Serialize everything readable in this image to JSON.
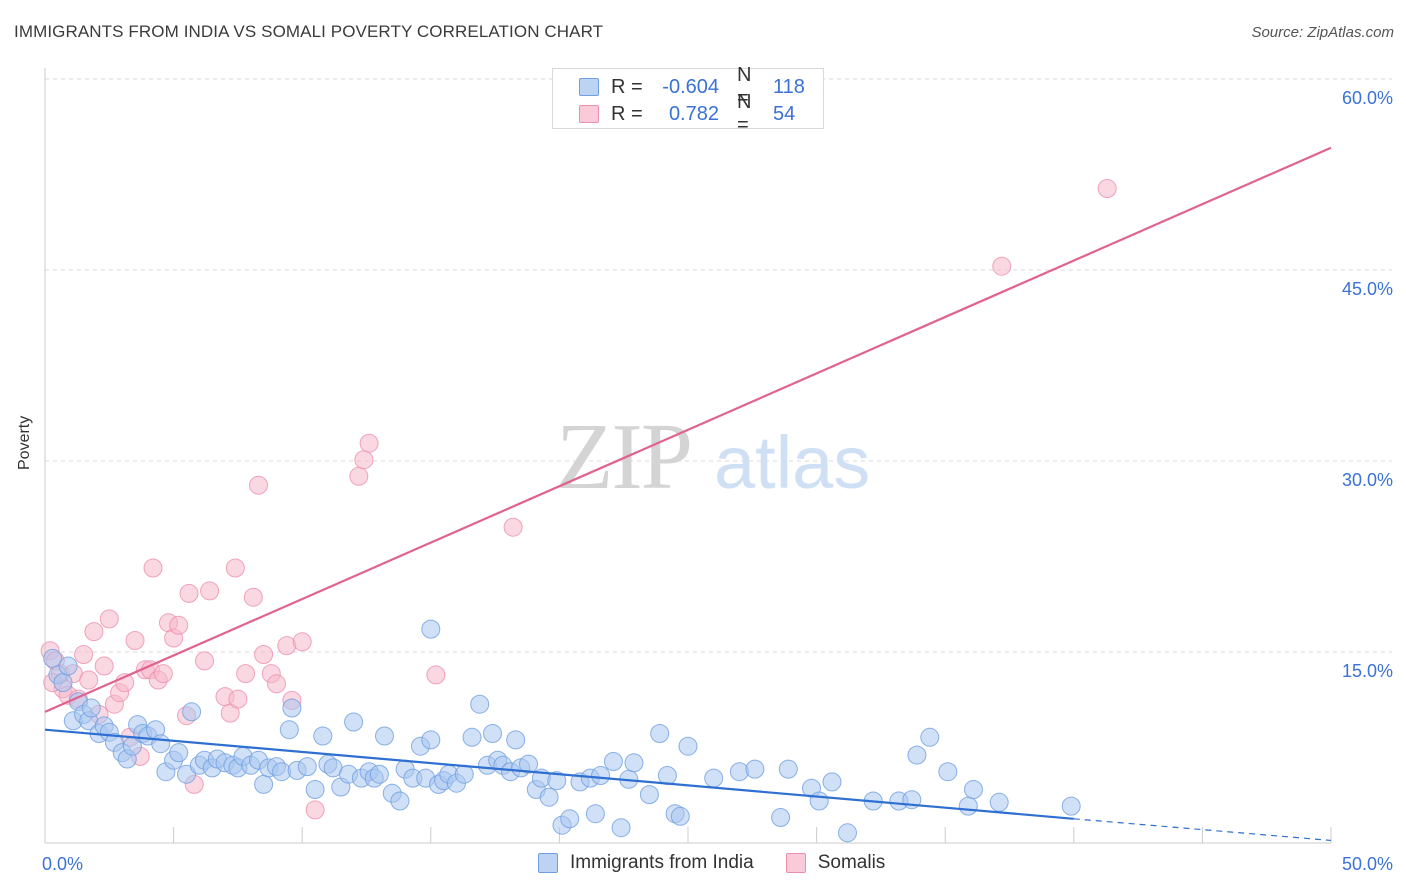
{
  "title": "IMMIGRANTS FROM INDIA VS SOMALI POVERTY CORRELATION CHART",
  "source": "Source: ZipAtlas.com",
  "watermark": {
    "zip": "ZIP",
    "atlas": "atlas"
  },
  "colors": {
    "blue_fill": "#a9c6f0",
    "blue_stroke": "#6f9fe0",
    "blue_line": "#2e6fd1",
    "pink_fill": "#f6b8cb",
    "pink_stroke": "#ec8fae",
    "pink_line": "#e0628f",
    "axis_text": "#3a72d6",
    "grid": "#d8d8d8"
  },
  "legend_top": {
    "rows": [
      {
        "r_label": "R =",
        "r_value": "-0.604",
        "n_label": "N =",
        "n_value": "118"
      },
      {
        "r_label": "R =",
        "r_value": "0.782",
        "n_label": "N =",
        "n_value": "54"
      }
    ]
  },
  "legend_bottom": [
    {
      "label": "Immigrants from India"
    },
    {
      "label": "Somalis"
    }
  ],
  "chart_data": {
    "type": "scatter",
    "title": "IMMIGRANTS FROM INDIA VS SOMALI POVERTY CORRELATION CHART",
    "xlabel": "",
    "ylabel": "Poverty",
    "xlim": [
      0,
      50
    ],
    "ylim": [
      0,
      60
    ],
    "x_tick_labels": [
      "0.0%",
      "50.0%"
    ],
    "y_ticks": [
      15,
      30,
      45,
      60
    ],
    "y_tick_labels": [
      "15.0%",
      "30.0%",
      "45.0%",
      "60.0%"
    ],
    "grid": true,
    "legend_position": "top-center",
    "series": [
      {
        "name": "Immigrants from India",
        "r": -0.604,
        "n": 118,
        "trend": {
          "x0": 0,
          "y0": 8.9,
          "x1": 40,
          "y1": 1.9,
          "dashed_to_x": 50,
          "dashed_to_y": 0.2
        },
        "points": [
          [
            0.3,
            14.5
          ],
          [
            0.5,
            13.2
          ],
          [
            0.7,
            12.6
          ],
          [
            0.9,
            13.9
          ],
          [
            1.1,
            9.6
          ],
          [
            1.3,
            11.1
          ],
          [
            1.5,
            10.1
          ],
          [
            1.7,
            9.6
          ],
          [
            1.8,
            10.6
          ],
          [
            2.1,
            8.6
          ],
          [
            2.3,
            9.2
          ],
          [
            2.5,
            8.7
          ],
          [
            2.7,
            7.9
          ],
          [
            3.0,
            7.1
          ],
          [
            3.2,
            6.6
          ],
          [
            3.4,
            7.6
          ],
          [
            3.6,
            9.3
          ],
          [
            3.8,
            8.6
          ],
          [
            4.0,
            8.4
          ],
          [
            4.3,
            8.9
          ],
          [
            4.5,
            7.8
          ],
          [
            4.7,
            5.6
          ],
          [
            5.0,
            6.5
          ],
          [
            5.2,
            7.1
          ],
          [
            5.5,
            5.4
          ],
          [
            5.7,
            10.3
          ],
          [
            6.0,
            6.1
          ],
          [
            6.2,
            6.5
          ],
          [
            6.5,
            5.9
          ],
          [
            6.7,
            6.6
          ],
          [
            7.0,
            6.3
          ],
          [
            7.3,
            6.1
          ],
          [
            7.5,
            5.9
          ],
          [
            7.7,
            6.8
          ],
          [
            8.0,
            6.1
          ],
          [
            8.3,
            6.5
          ],
          [
            8.5,
            4.6
          ],
          [
            8.7,
            5.9
          ],
          [
            9.0,
            6.0
          ],
          [
            9.2,
            5.6
          ],
          [
            9.5,
            8.9
          ],
          [
            9.6,
            10.6
          ],
          [
            9.8,
            5.7
          ],
          [
            10.2,
            6.0
          ],
          [
            10.5,
            4.2
          ],
          [
            10.8,
            8.4
          ],
          [
            11.0,
            6.2
          ],
          [
            11.2,
            5.9
          ],
          [
            11.5,
            4.4
          ],
          [
            11.8,
            5.4
          ],
          [
            12.0,
            9.5
          ],
          [
            12.3,
            5.1
          ],
          [
            12.6,
            5.6
          ],
          [
            12.8,
            5.1
          ],
          [
            13.0,
            5.4
          ],
          [
            13.2,
            8.4
          ],
          [
            13.5,
            3.9
          ],
          [
            13.8,
            3.3
          ],
          [
            14.0,
            5.8
          ],
          [
            14.3,
            5.1
          ],
          [
            14.6,
            7.6
          ],
          [
            14.8,
            5.1
          ],
          [
            15.0,
            8.1
          ],
          [
            15.3,
            4.6
          ],
          [
            15.5,
            4.9
          ],
          [
            15.7,
            5.4
          ],
          [
            16.0,
            4.7
          ],
          [
            16.3,
            5.4
          ],
          [
            16.6,
            8.3
          ],
          [
            16.9,
            10.9
          ],
          [
            17.2,
            6.1
          ],
          [
            17.4,
            8.6
          ],
          [
            17.6,
            6.5
          ],
          [
            17.8,
            6.1
          ],
          [
            18.1,
            5.6
          ],
          [
            18.3,
            8.1
          ],
          [
            18.5,
            5.9
          ],
          [
            18.8,
            6.2
          ],
          [
            19.1,
            4.2
          ],
          [
            19.3,
            5.1
          ],
          [
            19.6,
            3.6
          ],
          [
            19.9,
            4.9
          ],
          [
            20.1,
            1.4
          ],
          [
            20.4,
            1.9
          ],
          [
            20.8,
            4.8
          ],
          [
            21.2,
            5.1
          ],
          [
            21.4,
            2.3
          ],
          [
            21.6,
            5.3
          ],
          [
            22.1,
            6.4
          ],
          [
            22.4,
            1.2
          ],
          [
            22.7,
            5.0
          ],
          [
            22.9,
            6.3
          ],
          [
            23.5,
            3.8
          ],
          [
            23.9,
            8.6
          ],
          [
            24.2,
            5.3
          ],
          [
            24.5,
            2.3
          ],
          [
            24.7,
            2.1
          ],
          [
            25.0,
            7.6
          ],
          [
            26.0,
            5.1
          ],
          [
            27.0,
            5.6
          ],
          [
            27.6,
            5.8
          ],
          [
            28.6,
            2.0
          ],
          [
            28.9,
            5.8
          ],
          [
            29.8,
            4.3
          ],
          [
            30.1,
            3.3
          ],
          [
            30.6,
            4.8
          ],
          [
            31.2,
            0.8
          ],
          [
            32.2,
            3.3
          ],
          [
            33.2,
            3.3
          ],
          [
            33.7,
            3.4
          ],
          [
            33.9,
            6.9
          ],
          [
            34.4,
            8.3
          ],
          [
            35.1,
            5.6
          ],
          [
            35.9,
            2.9
          ],
          [
            36.1,
            4.2
          ],
          [
            37.1,
            3.2
          ],
          [
            39.9,
            2.9
          ],
          [
            15.0,
            16.8
          ]
        ]
      },
      {
        "name": "Somalis",
        "r": 0.782,
        "n": 54,
        "trend": {
          "x0": 0,
          "y0": 10.3,
          "x1": 50,
          "y1": 54.6
        },
        "points": [
          [
            0.2,
            15.1
          ],
          [
            0.4,
            14.3
          ],
          [
            0.6,
            13.3
          ],
          [
            0.7,
            12.1
          ],
          [
            0.9,
            11.6
          ],
          [
            1.1,
            13.3
          ],
          [
            1.3,
            11.3
          ],
          [
            1.5,
            14.8
          ],
          [
            1.7,
            12.8
          ],
          [
            1.9,
            16.6
          ],
          [
            2.1,
            10.1
          ],
          [
            2.3,
            13.9
          ],
          [
            2.5,
            17.6
          ],
          [
            2.7,
            10.9
          ],
          [
            2.9,
            11.8
          ],
          [
            3.1,
            12.6
          ],
          [
            3.3,
            8.3
          ],
          [
            3.5,
            15.9
          ],
          [
            3.7,
            6.8
          ],
          [
            3.9,
            13.6
          ],
          [
            4.1,
            13.6
          ],
          [
            4.2,
            21.6
          ],
          [
            4.4,
            12.8
          ],
          [
            4.6,
            13.3
          ],
          [
            4.8,
            17.3
          ],
          [
            5.0,
            16.1
          ],
          [
            5.2,
            17.1
          ],
          [
            5.5,
            10.0
          ],
          [
            5.6,
            19.6
          ],
          [
            5.8,
            4.6
          ],
          [
            6.2,
            14.3
          ],
          [
            6.4,
            19.8
          ],
          [
            7.0,
            11.5
          ],
          [
            7.2,
            10.2
          ],
          [
            7.4,
            21.6
          ],
          [
            7.5,
            11.3
          ],
          [
            7.8,
            13.3
          ],
          [
            8.1,
            19.3
          ],
          [
            8.3,
            28.1
          ],
          [
            8.5,
            14.8
          ],
          [
            8.8,
            13.3
          ],
          [
            9.0,
            12.5
          ],
          [
            9.4,
            15.5
          ],
          [
            9.6,
            11.2
          ],
          [
            10.0,
            15.8
          ],
          [
            10.5,
            2.6
          ],
          [
            12.2,
            28.8
          ],
          [
            12.4,
            30.1
          ],
          [
            12.6,
            31.4
          ],
          [
            15.2,
            13.2
          ],
          [
            18.2,
            24.8
          ],
          [
            37.2,
            45.3
          ],
          [
            41.3,
            51.4
          ],
          [
            0.3,
            12.6
          ]
        ]
      }
    ]
  }
}
